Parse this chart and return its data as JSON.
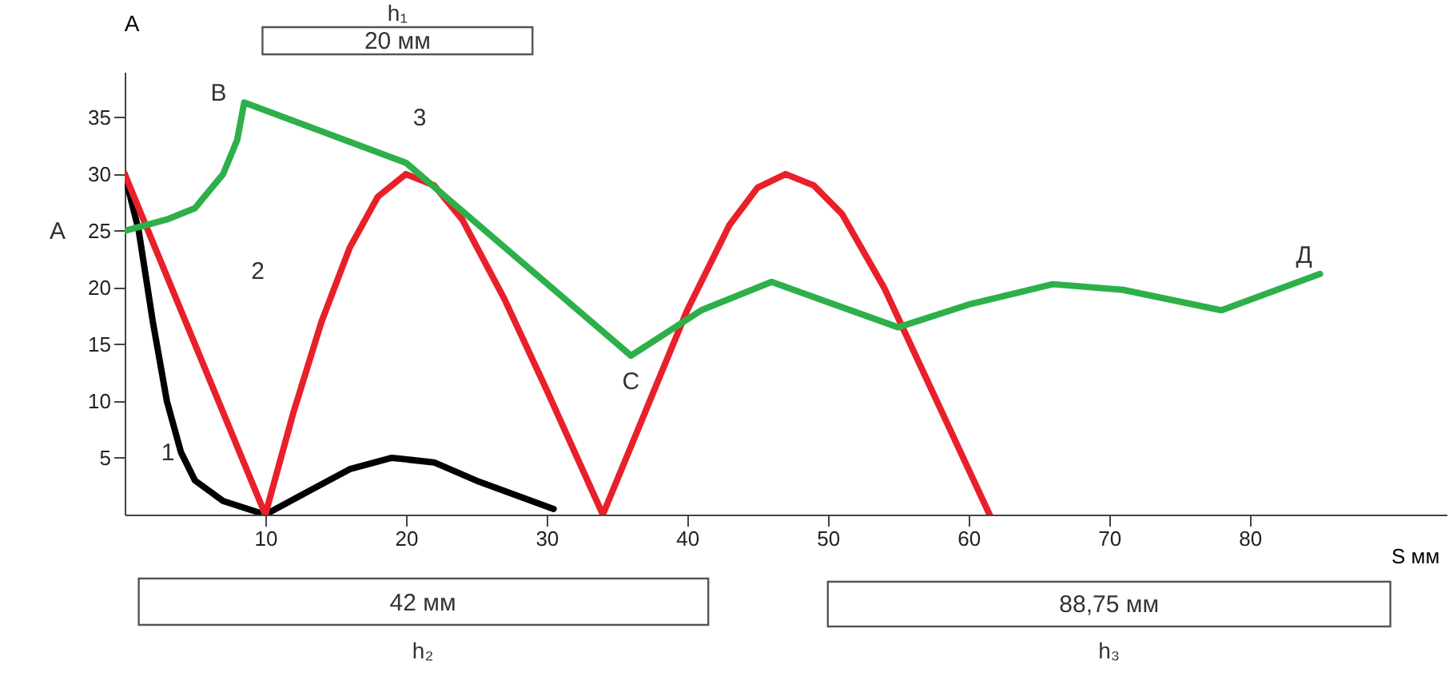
{
  "chart_data": {
    "type": "line",
    "xlabel": "S мм",
    "ylabel": "A",
    "xlim": [
      0,
      94
    ],
    "ylim": [
      0,
      39
    ],
    "xticks": [
      10,
      20,
      30,
      40,
      50,
      60,
      70,
      80
    ],
    "yticks": [
      5,
      10,
      15,
      20,
      25,
      30,
      35
    ],
    "grid": false,
    "legend": false,
    "marker": "none",
    "line_style": "solid",
    "series": [
      {
        "name": "1",
        "color": "#000000",
        "x": [
          0,
          1,
          2,
          3,
          4,
          5,
          7,
          10,
          13,
          16,
          19,
          22,
          25,
          30.5
        ],
        "values": [
          30,
          25,
          17,
          10,
          5.5,
          3,
          1.2,
          0,
          2,
          4,
          5,
          4.6,
          3,
          0.5
        ]
      },
      {
        "name": "2",
        "color": "#e8202a",
        "x": [
          0,
          10,
          12,
          14,
          16,
          18,
          20,
          22,
          24,
          27,
          30,
          34,
          37,
          40,
          43,
          45,
          47,
          49,
          51,
          54,
          57,
          61.5
        ],
        "values": [
          30,
          0,
          9,
          17,
          23.5,
          28,
          30,
          29,
          26,
          19,
          11,
          0,
          9,
          18,
          25.5,
          28.8,
          30,
          29,
          26.5,
          20,
          12,
          0
        ]
      },
      {
        "name": "3",
        "color": "#2db04a",
        "x": [
          0,
          3,
          5,
          7,
          8,
          8.5,
          20,
          36,
          41,
          46,
          55,
          60,
          66,
          71,
          78,
          85
        ],
        "values": [
          25,
          26,
          27,
          30,
          33,
          36.3,
          31,
          14,
          18,
          20.5,
          16.5,
          18.5,
          20.3,
          19.8,
          18,
          21.2
        ]
      }
    ],
    "annotations": [
      {
        "text": "А",
        "x": 0,
        "y": 25
      },
      {
        "text": "В",
        "x": 8.5,
        "y": 36.3
      },
      {
        "text": "С",
        "x": 36,
        "y": 14
      },
      {
        "text": "Д",
        "x": 85,
        "y": 21.2
      },
      "h₁",
      "20 мм",
      "42 мм",
      "h₂",
      "88,75 мм",
      "h₃"
    ]
  }
}
